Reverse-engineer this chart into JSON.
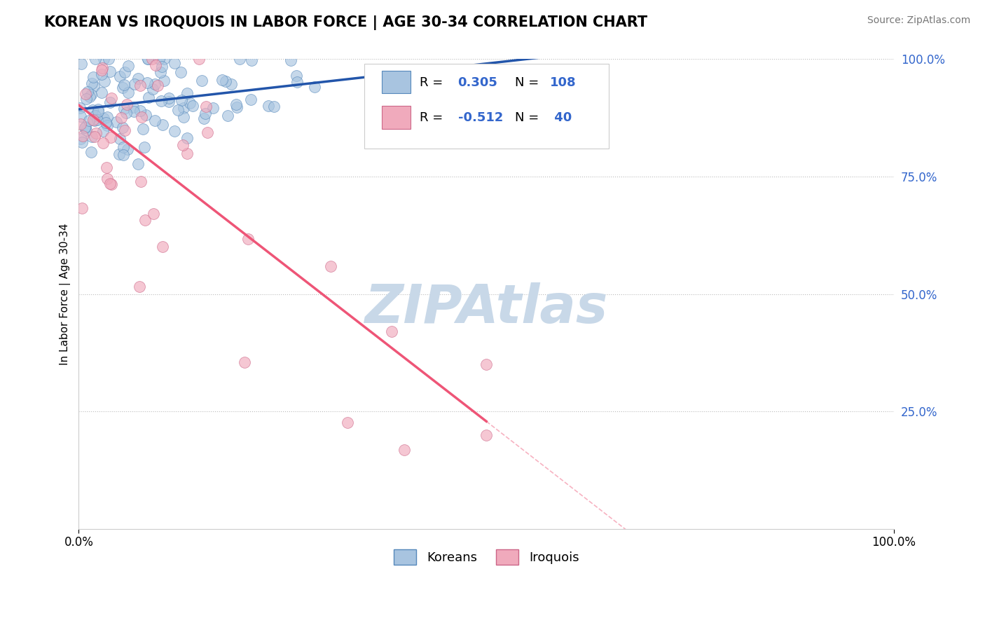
{
  "title": "KOREAN VS IROQUOIS IN LABOR FORCE | AGE 30-34 CORRELATION CHART",
  "source_text": "Source: ZipAtlas.com",
  "ylabel": "In Labor Force | Age 30-34",
  "xlim": [
    0.0,
    1.0
  ],
  "ylim": [
    0.0,
    1.0
  ],
  "korean_R": 0.305,
  "korean_N": 108,
  "iroquois_R": -0.512,
  "iroquois_N": 40,
  "korean_color": "#A8C4E0",
  "korean_edge_color": "#5588BB",
  "iroquois_color": "#F0AABC",
  "iroquois_edge_color": "#CC6688",
  "trend_korean_color": "#2255AA",
  "trend_iroquois_color": "#EE5577",
  "watermark_color": "#C8D8E8",
  "background_color": "#FFFFFF",
  "ytick_color": "#3366CC",
  "legend_text_r_color": "#3366CC",
  "legend_text_n_color": "#3366CC"
}
